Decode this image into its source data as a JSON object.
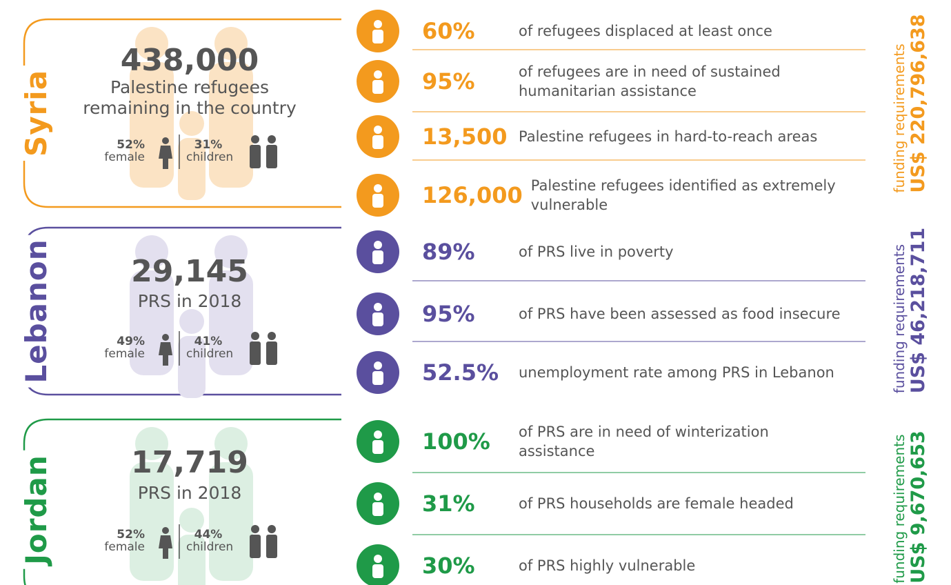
{
  "sections": [
    {
      "country": "Syria",
      "color": "#f39a1e",
      "total": "438,000",
      "subtitle": "Palestine refugees remaining in the country",
      "female_pct": "52%",
      "female_label": "female",
      "children_pct": "31%",
      "children_label": "children",
      "stats": [
        {
          "value": "60%",
          "text": "of refugees displaced at least once"
        },
        {
          "value": "95%",
          "text": "of refugees are in need of sustained humanitarian assistance"
        },
        {
          "value": "13,500",
          "text": "Palestine refugees in hard-to-reach areas"
        },
        {
          "value": "126,000",
          "text": "Palestine refugees identified as extremely vulnerable"
        }
      ],
      "funding_label": "funding requirements",
      "funding_amount": "US$ 220,796,638"
    },
    {
      "country": "Lebanon",
      "color": "#5a4f9e",
      "total": "29,145",
      "subtitle": "PRS in 2018",
      "female_pct": "49%",
      "female_label": "female",
      "children_pct": "41%",
      "children_label": "children",
      "stats": [
        {
          "value": "89%",
          "text": "of PRS live in poverty"
        },
        {
          "value": "95%",
          "text": "of PRS have been assessed as food insecure"
        },
        {
          "value": "52.5%",
          "text": "unemployment rate among PRS in Lebanon"
        }
      ],
      "funding_label": "funding requirements",
      "funding_amount": "US$ 46,218,711"
    },
    {
      "country": "Jordan",
      "color": "#1f9a48",
      "total": "17,719",
      "subtitle": "PRS in 2018",
      "female_pct": "52%",
      "female_label": "female",
      "children_pct": "44%",
      "children_label": "children",
      "stats": [
        {
          "value": "100%",
          "text": "of PRS are in need of winterization assistance"
        },
        {
          "value": "31%",
          "text": "of PRS households are female headed"
        },
        {
          "value": "30%",
          "text": "of PRS highly vulnerable"
        }
      ],
      "funding_label": "funding requirements",
      "funding_amount": "US$ 9,670,653"
    }
  ]
}
